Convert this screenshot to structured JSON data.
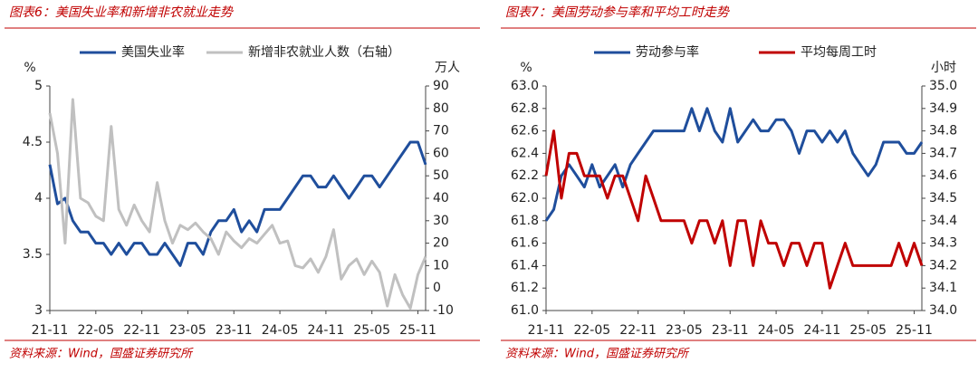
{
  "chart_data": [
    {
      "type": "line",
      "title": "图表6：美国失业率和新增非农就业走势",
      "source": "资料来源：Wind，国盛证券研究所",
      "y_unit": "%",
      "y2_unit": "万人",
      "categories": [
        "21-11",
        null,
        null,
        null,
        null,
        null,
        "22-05",
        null,
        null,
        null,
        null,
        null,
        "22-11",
        null,
        null,
        null,
        null,
        null,
        "23-05",
        null,
        null,
        null,
        null,
        null,
        "23-11",
        null,
        null,
        null,
        null,
        null,
        "24-05",
        null,
        null,
        null,
        null,
        null,
        "24-11",
        null,
        null,
        null,
        null,
        null,
        "25-05",
        null,
        null,
        null,
        null,
        null,
        "25-11",
        null
      ],
      "ylim": [
        3,
        5
      ],
      "yticks": [
        3,
        3.5,
        4,
        4.5,
        5
      ],
      "y2lim": [
        -10,
        90
      ],
      "y2ticks": [
        -10,
        0,
        10,
        20,
        30,
        40,
        50,
        60,
        70,
        80,
        90
      ],
      "series": [
        {
          "name": "美国失业率",
          "color": "#1f4e9c",
          "values": [
            4.3,
            3.95,
            4.0,
            3.8,
            3.7,
            3.7,
            3.6,
            3.6,
            3.5,
            3.6,
            3.5,
            3.6,
            3.6,
            3.5,
            3.5,
            3.6,
            3.5,
            3.4,
            3.6,
            3.6,
            3.5,
            3.7,
            3.8,
            3.8,
            3.9,
            3.7,
            3.8,
            3.7,
            3.9,
            3.9,
            3.9,
            4.0,
            4.1,
            4.2,
            4.2,
            4.1,
            4.1,
            4.2,
            4.1,
            4.0,
            4.1,
            4.2,
            4.2,
            4.1,
            4.2,
            4.3,
            4.4,
            4.5,
            4.5,
            4.3
          ]
        },
        {
          "name": "新增非农就业人数（右轴）",
          "color": "#c0c0c0",
          "axis": "y2",
          "values": [
            78,
            60,
            20,
            84,
            40,
            38,
            32,
            30,
            72,
            35,
            28,
            37,
            30,
            25,
            47,
            30,
            20,
            28,
            26,
            29,
            25,
            22,
            15,
            25,
            21,
            18,
            22,
            20,
            24,
            28,
            20,
            21,
            10,
            9,
            13,
            7,
            14,
            26,
            4,
            10,
            13,
            6,
            12,
            7,
            -8,
            6,
            -3,
            -9,
            6,
            14
          ]
        }
      ]
    },
    {
      "type": "line",
      "title": "图表7：美国劳动参与率和平均工时走势",
      "source": "资料来源：Wind，国盛证券研究所",
      "y_unit": "%",
      "y2_unit": "小时",
      "categories": [
        "21-11",
        null,
        null,
        null,
        null,
        null,
        "22-05",
        null,
        null,
        null,
        null,
        null,
        "22-11",
        null,
        null,
        null,
        null,
        null,
        "23-05",
        null,
        null,
        null,
        null,
        null,
        "23-11",
        null,
        null,
        null,
        null,
        null,
        "24-05",
        null,
        null,
        null,
        null,
        null,
        "24-11",
        null,
        null,
        null,
        null,
        null,
        "25-05",
        null,
        null,
        null,
        null,
        null,
        "25-11",
        null
      ],
      "ylim": [
        61.0,
        63.0
      ],
      "yticks": [
        {
          "value": 61.0,
          "label": "61.0"
        },
        {
          "value": 61.2,
          "label": "61.2"
        },
        {
          "value": 61.4,
          "label": "61.4"
        },
        {
          "value": 61.6,
          "label": "61.6"
        },
        {
          "value": 61.8,
          "label": "61.8"
        },
        {
          "value": 62.0,
          "label": "62.0"
        },
        {
          "value": 62.2,
          "label": "62.2"
        },
        {
          "value": 62.4,
          "label": "62.4"
        },
        {
          "value": 62.6,
          "label": "62.6"
        },
        {
          "value": 62.8,
          "label": "62.8"
        },
        {
          "value": 63.0,
          "label": "63.0"
        }
      ],
      "y2lim": [
        34.0,
        35.0
      ],
      "y2ticks": [
        {
          "value": 34.0,
          "label": "34.0"
        },
        {
          "value": 34.1,
          "label": "34.1"
        },
        {
          "value": 34.2,
          "label": "34.2"
        },
        {
          "value": 34.3,
          "label": "34.3"
        },
        {
          "value": 34.4,
          "label": "34.4"
        },
        {
          "value": 34.5,
          "label": "34.5"
        },
        {
          "value": 34.6,
          "label": "34.6"
        },
        {
          "value": 34.7,
          "label": "34.7"
        },
        {
          "value": 34.8,
          "label": "34.8"
        },
        {
          "value": 34.9,
          "label": "34.9"
        },
        {
          "value": 35.0,
          "label": "35.0"
        }
      ],
      "series": [
        {
          "name": "劳动参与率",
          "color": "#1f4e9c",
          "values": [
            61.8,
            61.9,
            62.2,
            62.3,
            62.2,
            62.1,
            62.3,
            62.1,
            62.2,
            62.3,
            62.1,
            62.3,
            62.4,
            62.5,
            62.6,
            62.6,
            62.6,
            62.6,
            62.6,
            62.8,
            62.6,
            62.8,
            62.6,
            62.5,
            62.8,
            62.5,
            62.6,
            62.7,
            62.6,
            62.6,
            62.7,
            62.7,
            62.6,
            62.4,
            62.6,
            62.6,
            62.5,
            62.6,
            62.5,
            62.6,
            62.4,
            62.3,
            62.2,
            62.3,
            62.5,
            62.5,
            62.5,
            62.4,
            62.4,
            62.5
          ]
        },
        {
          "name": "平均每周工时",
          "color": "#c00000",
          "axis": "y2",
          "values": [
            34.6,
            34.8,
            34.5,
            34.7,
            34.7,
            34.6,
            34.6,
            34.6,
            34.5,
            34.6,
            34.6,
            34.5,
            34.4,
            34.6,
            34.5,
            34.4,
            34.4,
            34.4,
            34.4,
            34.3,
            34.4,
            34.4,
            34.3,
            34.4,
            34.2,
            34.4,
            34.4,
            34.2,
            34.4,
            34.3,
            34.3,
            34.2,
            34.3,
            34.3,
            34.2,
            34.3,
            34.3,
            34.1,
            34.2,
            34.3,
            34.2,
            34.2,
            34.2,
            34.2,
            34.2,
            34.2,
            34.3,
            34.2,
            34.3,
            34.2
          ]
        }
      ]
    }
  ]
}
